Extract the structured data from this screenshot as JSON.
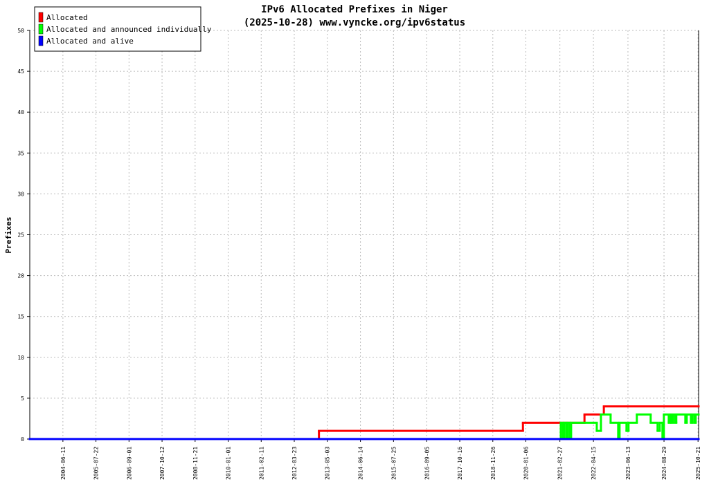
{
  "chart_data": {
    "type": "line",
    "step": "post",
    "title": "IPv6 Allocated Prefixes in Niger",
    "subtitle": "(2025-10-28) www.vyncke.org/ipv6status",
    "y_label": "Prefixes",
    "xlim": [
      "2003-05-01",
      "2025-10-28"
    ],
    "xticks": [
      "2004-06-11",
      "2005-07-22",
      "2006-09-01",
      "2007-10-12",
      "2008-11-21",
      "2010-01-01",
      "2011-02-11",
      "2012-03-23",
      "2013-05-03",
      "2014-06-14",
      "2015-07-25",
      "2016-09-05",
      "2017-10-16",
      "2018-11-26",
      "2020-01-06",
      "2021-02-27",
      "2022-04-15",
      "2023-06-13",
      "2024-08-29",
      "2025-10-21"
    ],
    "ylim": [
      0,
      50
    ],
    "yticks": [
      0,
      5,
      10,
      15,
      20,
      25,
      30,
      35,
      40,
      45,
      50
    ],
    "grid": true,
    "legend": "top-left",
    "series": [
      {
        "name": "Allocated",
        "color": "#ff0000",
        "x": [
          "2003-05-01",
          "2013-01-20",
          "2019-12-01",
          "2021-12-26",
          "2022-08-21",
          "2025-10-28"
        ],
        "values": [
          0,
          1,
          2,
          3,
          4,
          4
        ]
      },
      {
        "name": "Allocated and announced individually",
        "color": "#00ff00",
        "x": [
          "2003-05-01",
          "2021-03-10",
          "2021-04-04",
          "2021-04-21",
          "2021-05-17",
          "2021-06-03",
          "2021-06-28",
          "2021-07-15",
          "2022-05-26",
          "2022-07-16",
          "2022-11-12",
          "2023-02-13",
          "2023-03-02",
          "2023-05-26",
          "2023-06-20",
          "2023-09-30",
          "2024-03-18",
          "2024-06-11",
          "2024-07-07",
          "2024-08-10",
          "2024-08-27",
          "2024-10-26",
          "2024-11-12",
          "2024-11-29",
          "2024-12-16",
          "2025-01-10",
          "2025-01-27",
          "2025-05-18",
          "2025-06-04",
          "2025-07-25",
          "2025-08-11",
          "2025-09-05",
          "2025-09-22",
          "2025-10-28"
        ],
        "values": [
          0,
          2,
          0,
          2,
          0,
          2,
          0,
          2,
          1,
          3,
          2,
          0,
          2,
          1,
          2,
          3,
          2,
          1,
          2,
          0,
          3,
          2,
          3,
          2,
          3,
          2,
          3,
          2,
          3,
          2,
          3,
          2,
          3,
          3
        ]
      },
      {
        "name": "Allocated and alive",
        "color": "#0000ff",
        "x": [
          "2003-05-01",
          "2025-10-28"
        ],
        "values": [
          0,
          0
        ]
      }
    ]
  }
}
